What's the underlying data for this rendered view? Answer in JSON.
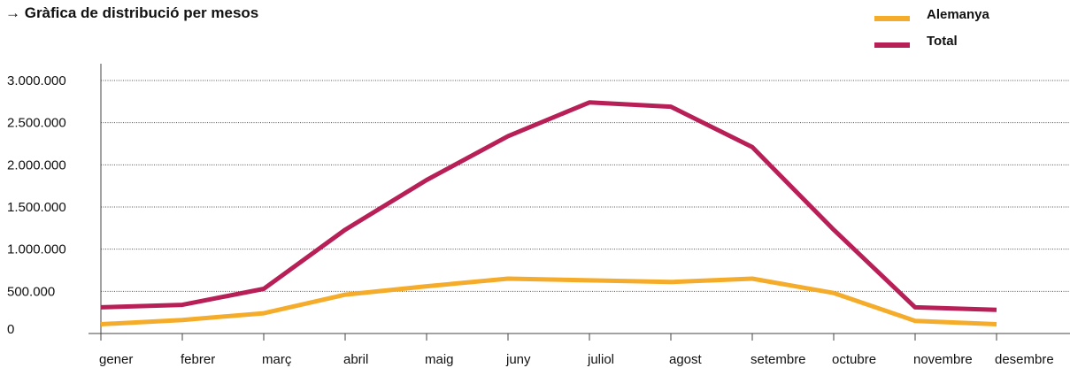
{
  "title": "→ Gràfica de distribució per mesos",
  "legend": [
    {
      "name": "Alemanya",
      "color": "#F5AC2A"
    },
    {
      "name": "Total",
      "color": "#B71F56"
    }
  ],
  "chart_data": {
    "type": "line",
    "title": "→ Gràfica de distribució per mesos",
    "xlabel": "",
    "ylabel": "",
    "categories": [
      "gener",
      "febrer",
      "març",
      "abril",
      "maig",
      "juny",
      "juliol",
      "agost",
      "setembre",
      "octubre",
      "novembre",
      "desembre"
    ],
    "y_ticks": [
      0,
      500000,
      1000000,
      1500000,
      2000000,
      2500000,
      3000000
    ],
    "y_tick_labels": [
      "0",
      "500.000",
      "1.000.000",
      "1.500.000",
      "2.000.000",
      "2.500.000",
      "3.000.000"
    ],
    "ylim": [
      0,
      3000000
    ],
    "grid": "horizontal dotted",
    "legend_position": "top-right",
    "series": [
      {
        "name": "Alemanya",
        "color": "#F5AC2A",
        "values": [
          110000,
          160000,
          240000,
          460000,
          560000,
          650000,
          630000,
          610000,
          650000,
          480000,
          150000,
          110000
        ]
      },
      {
        "name": "Total",
        "color": "#B71F56",
        "values": [
          310000,
          340000,
          530000,
          1230000,
          1820000,
          2340000,
          2740000,
          2690000,
          2210000,
          1230000,
          310000,
          280000
        ]
      }
    ]
  }
}
